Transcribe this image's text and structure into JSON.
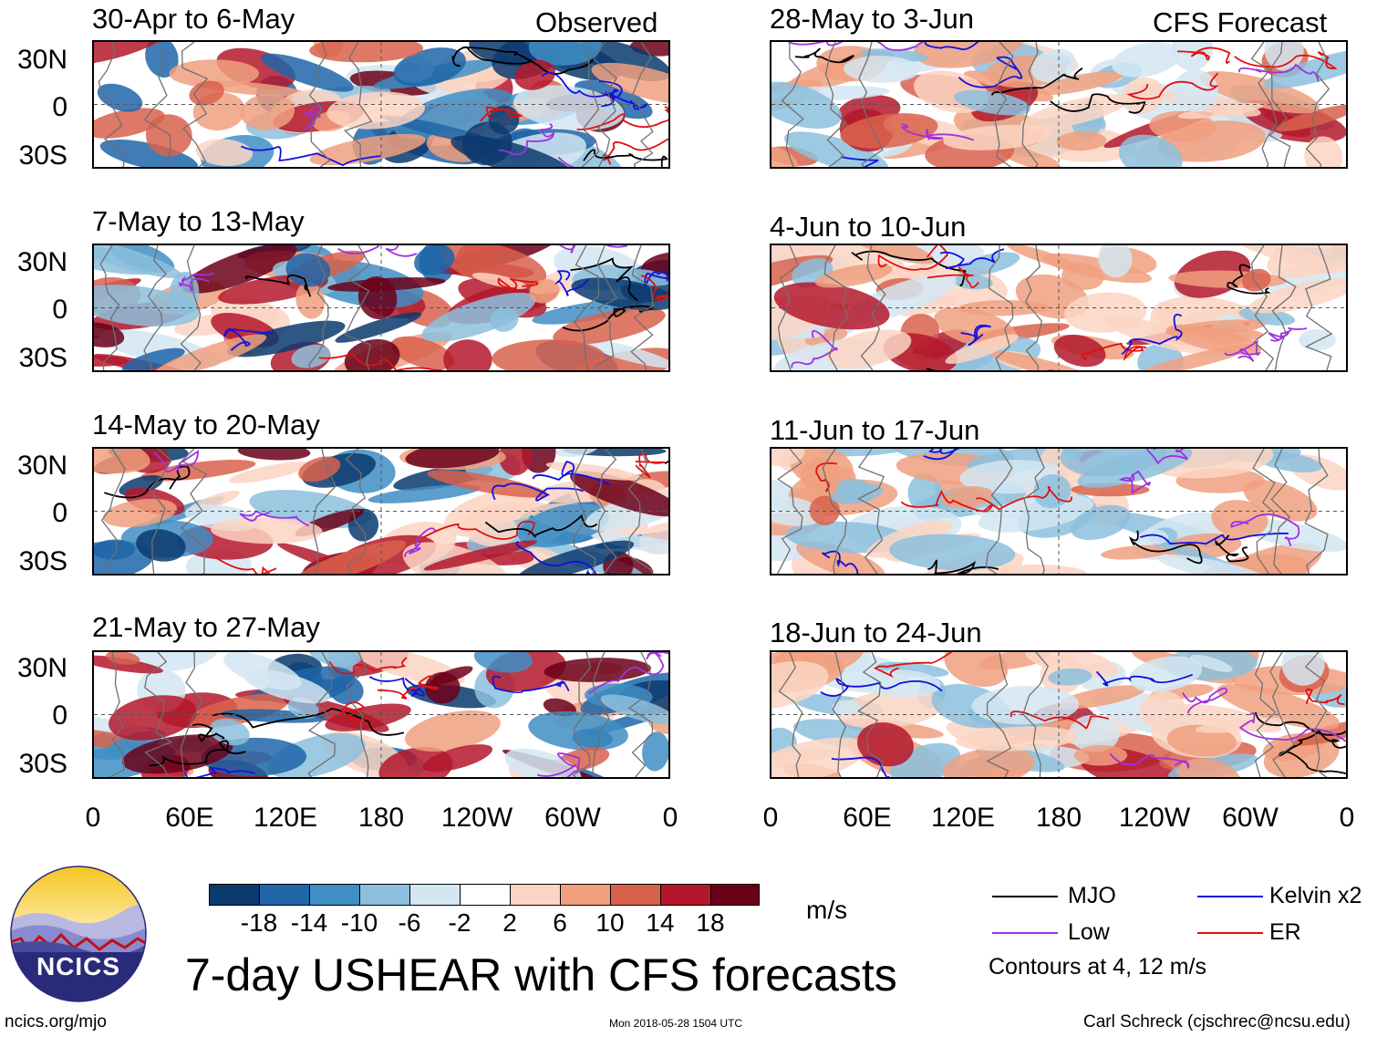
{
  "title": "7-day USHEAR with CFS forecasts",
  "observed_label": "Observed",
  "forecast_label": "CFS Forecast",
  "logo": {
    "text": "NCICS"
  },
  "observed_panels": [
    {
      "period": "30-Apr to 6-May"
    },
    {
      "period": "7-May to 13-May"
    },
    {
      "period": "14-May to 20-May"
    },
    {
      "period": "21-May to 27-May"
    }
  ],
  "forecast_panels": [
    {
      "period": "28-May to 3-Jun"
    },
    {
      "period": "4-Jun to 10-Jun"
    },
    {
      "period": "11-Jun to 17-Jun"
    },
    {
      "period": "18-Jun to 24-Jun"
    }
  ],
  "y_axis_labels": [
    "30N",
    "0",
    "30S"
  ],
  "x_axis_labels": [
    "0",
    "60E",
    "120E",
    "180",
    "120W",
    "60W",
    "0"
  ],
  "colorbar": {
    "unit": "m/s",
    "tick_labels": [
      "-18",
      "-14",
      "-10",
      "-6",
      "-2",
      "2",
      "6",
      "10",
      "14",
      "18"
    ],
    "colors": [
      "#0a3a6e",
      "#1f65a8",
      "#3f8ec4",
      "#8cbfdd",
      "#d3e6f2",
      "#ffffff",
      "#fbd5c3",
      "#f0a07f",
      "#d9624c",
      "#b4172b",
      "#6b0019"
    ]
  },
  "legend": {
    "items": [
      {
        "label": "MJO",
        "color": "#000000"
      },
      {
        "label": "Kelvin x2",
        "color": "#1010e0"
      },
      {
        "label": "Low",
        "color": "#a030e0"
      },
      {
        "label": "ER",
        "color": "#e01010"
      }
    ],
    "note": "Contours at 4, 12 m/s"
  },
  "footer": {
    "left": "ncics.org/mjo",
    "center": "Mon 2018-05-28 1504 UTC",
    "right": "Carl Schreck (cjschrec@ncsu.edu)"
  }
}
